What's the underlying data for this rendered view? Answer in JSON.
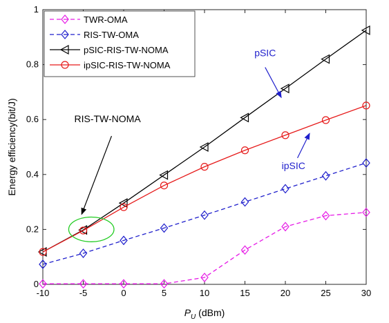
{
  "chart_data": {
    "type": "line",
    "xlabel_main": "P",
    "xlabel_sub": "U",
    "xlabel_unit": " (dBm)",
    "ylabel": "Energy efficiency(bit/J)",
    "xlim": [
      -10,
      30
    ],
    "ylim": [
      0,
      1
    ],
    "x_ticks": [
      -10,
      -5,
      0,
      5,
      10,
      15,
      20,
      25,
      30
    ],
    "y_ticks": [
      0,
      0.2,
      0.4,
      0.6,
      0.8,
      1
    ],
    "x": [
      -10,
      -5,
      0,
      5,
      10,
      15,
      20,
      25,
      30
    ],
    "grid": false,
    "legend_position": "top-left",
    "series": [
      {
        "name": "TWR-OMA",
        "color": "#e619e6",
        "dash": "dashed",
        "marker": "diamond",
        "values": [
          0.002,
          0.002,
          0.002,
          0.002,
          0.025,
          0.125,
          0.21,
          0.25,
          0.262
        ]
      },
      {
        "name": "RIS-TW-OMA",
        "color": "#1f1fcc",
        "dash": "dashed",
        "marker": "diamond",
        "values": [
          0.073,
          0.113,
          0.16,
          0.205,
          0.252,
          0.3,
          0.348,
          0.395,
          0.442
        ]
      },
      {
        "name": "pSIC-RIS-TW-NOMA",
        "color": "#000000",
        "dash": "solid",
        "marker": "triangle-left",
        "values": [
          0.118,
          0.198,
          0.296,
          0.398,
          0.5,
          0.607,
          0.713,
          0.82,
          0.925
        ]
      },
      {
        "name": "ipSIC-RIS-TW-NOMA",
        "color": "#e61a1a",
        "dash": "solid",
        "marker": "circle",
        "values": [
          0.118,
          0.196,
          0.281,
          0.36,
          0.428,
          0.488,
          0.543,
          0.598,
          0.651
        ]
      }
    ],
    "annotations": [
      {
        "text": "pSIC",
        "color": "#1f1fcc",
        "text_x": 17.5,
        "text_y": 0.83,
        "arrow_from": [
          17.5,
          0.79
        ],
        "arrow_to": [
          19.5,
          0.68
        ]
      },
      {
        "text": "ipSIC",
        "color": "#1f1fcc",
        "text_x": 21,
        "text_y": 0.42,
        "arrow_from": [
          21.5,
          0.46
        ],
        "arrow_to": [
          23,
          0.55
        ]
      },
      {
        "text": "RIS-TW-NOMA",
        "color": "#000000",
        "text_x": -2,
        "text_y": 0.59,
        "arrow_from": [
          -1.5,
          0.54
        ],
        "arrow_to": [
          -5.2,
          0.255
        ]
      }
    ],
    "ellipse": {
      "cx": -4,
      "cy": 0.2,
      "rx": 2.8,
      "ry": 0.045,
      "color": "#22cc22"
    }
  }
}
